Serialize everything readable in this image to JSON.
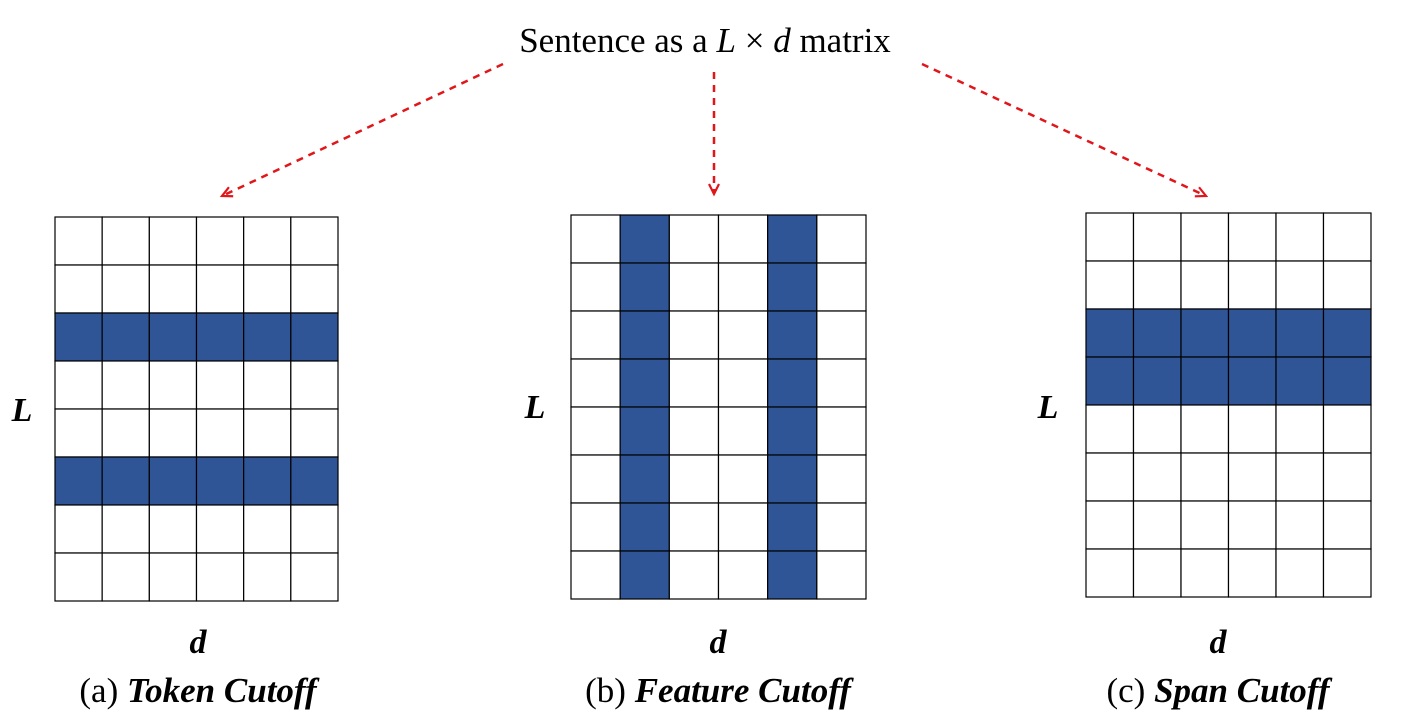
{
  "title": {
    "prefix": "Sentence as a ",
    "var_l": "L",
    "times": "×",
    "var_d": "d",
    "suffix": " matrix"
  },
  "colors": {
    "cutoff_fill": "#2f5597",
    "cell_fill": "#ffffff",
    "grid_line": "#000000",
    "arrow": "#e0161b"
  },
  "panels": [
    {
      "id": "token",
      "caption_prefix": "(a) ",
      "caption_name": "Token Cutoff",
      "row_label": "L",
      "col_label": "d",
      "rows": 8,
      "cols": 6,
      "cutoff_rows": [
        2,
        5
      ],
      "cutoff_cols": []
    },
    {
      "id": "feature",
      "caption_prefix": "(b) ",
      "caption_name": "Feature Cutoff",
      "row_label": "L",
      "col_label": "d",
      "rows": 8,
      "cols": 6,
      "cutoff_rows": [],
      "cutoff_cols": [
        1,
        4
      ]
    },
    {
      "id": "span",
      "caption_prefix": "(c) ",
      "caption_name": "Span Cutoff",
      "row_label": "L",
      "col_label": "d",
      "rows": 8,
      "cols": 6,
      "cutoff_rows": [
        2,
        3
      ],
      "cutoff_cols": []
    }
  ]
}
